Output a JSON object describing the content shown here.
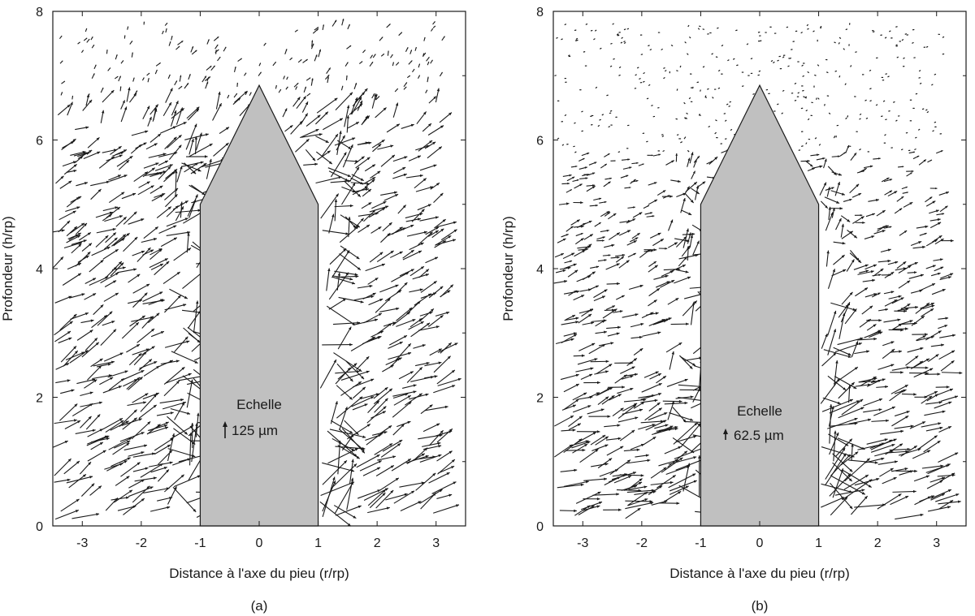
{
  "chart_data": [
    {
      "type": "scatter",
      "subtype": "quiver",
      "panel": "(a)",
      "xlabel": "Distance à l'axe du pieu (r/rp)",
      "ylabel": "Profondeur (h/rp)",
      "xlim": [
        -3.5,
        3.5
      ],
      "ylim": [
        0,
        8
      ],
      "xticks": [
        "-3",
        "-2",
        "-1",
        "0",
        "1",
        "2",
        "3"
      ],
      "yticks": [
        "0",
        "2",
        "4",
        "6",
        "8"
      ],
      "grid": false,
      "pile_outline": {
        "x": [
          -1,
          -1,
          0,
          1,
          1
        ],
        "y": [
          0,
          5,
          6.85,
          5,
          0
        ]
      },
      "scale": {
        "title": "Echelle",
        "value": "125 µm"
      },
      "field_description": {
        "domain_x": [
          -3.5,
          3.1
        ],
        "domain_y": [
          0.1,
          7.8
        ],
        "dominant_direction": "up-right",
        "magnitude_trend": "largest near the base and along the pile shaft, decreasing towards the surface"
      }
    },
    {
      "type": "scatter",
      "subtype": "quiver",
      "panel": "(b)",
      "xlabel": "Distance à l'axe du pieu (r/rp)",
      "ylabel": "Profondeur (h/rp)",
      "xlim": [
        -3.5,
        3.5
      ],
      "ylim": [
        0,
        8
      ],
      "xticks": [
        "-3",
        "-2",
        "-1",
        "0",
        "1",
        "2",
        "3"
      ],
      "yticks": [
        "0",
        "2",
        "4",
        "6",
        "8"
      ],
      "grid": false,
      "pile_outline": {
        "x": [
          -1,
          -1,
          0,
          1,
          1
        ],
        "y": [
          0,
          5,
          6.85,
          5,
          0
        ]
      },
      "scale": {
        "title": "Echelle",
        "value": "62.5 µm"
      },
      "field_description": {
        "domain_x": [
          -3.5,
          3.1
        ],
        "domain_y": [
          0.1,
          7.8
        ],
        "dominant_direction": "up-right",
        "magnitude_trend": "largest near the base and along the pile shaft, nearly vanishing in the upper layers"
      }
    }
  ],
  "captions": [
    "(a)",
    "(b)"
  ],
  "colors": {
    "pile_fill": "#c0c0c0",
    "arrows": "#1a1a1a",
    "axes": "#1a1a1a"
  }
}
